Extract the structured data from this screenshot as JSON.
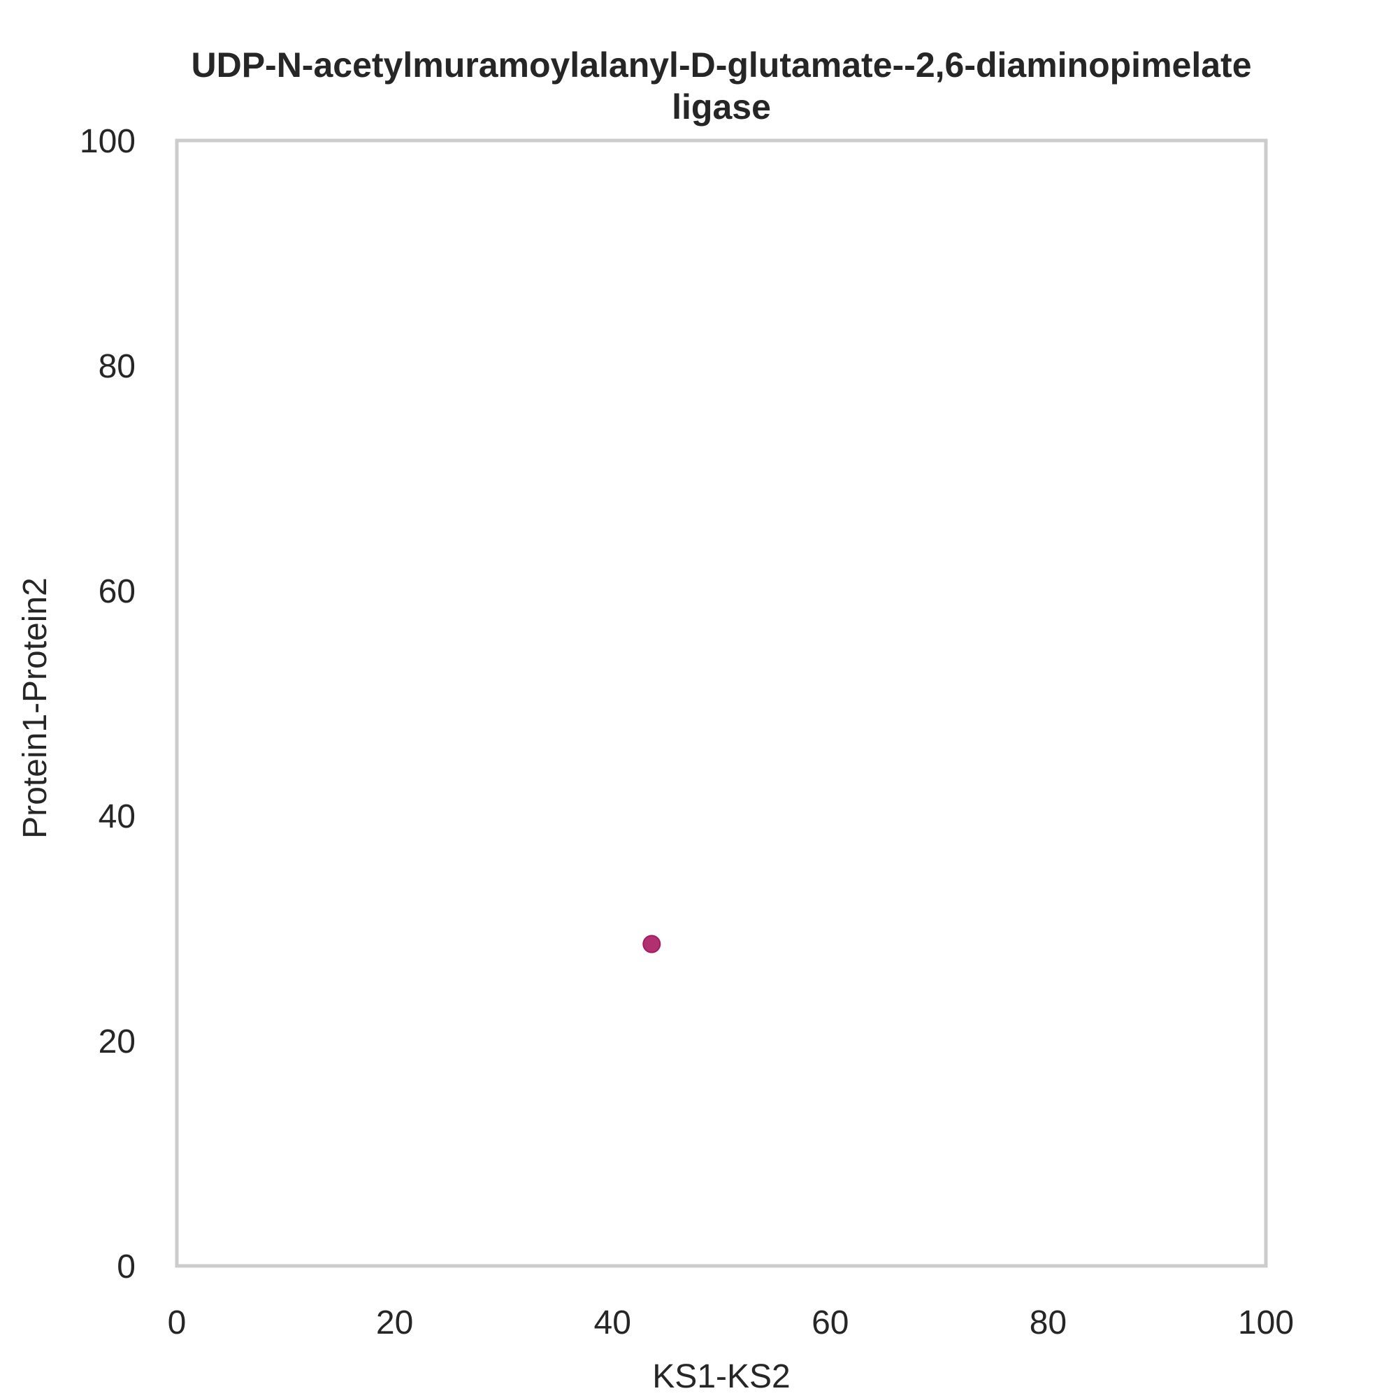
{
  "chart_data": {
    "type": "scatter",
    "title_lines": [
      "UDP-N-acetylmuramoylalanyl-D-glutamate--2,6-diaminopimelate",
      "ligase"
    ],
    "xlabel": "KS1-KS2",
    "ylabel": "Protein1-Protein2",
    "xlim": [
      0,
      100
    ],
    "ylim": [
      0,
      100
    ],
    "xticks": [
      0,
      20,
      40,
      60,
      80,
      100
    ],
    "yticks": [
      0,
      20,
      40,
      60,
      80,
      100
    ],
    "grid": false,
    "legend": "none",
    "frame_color": "#cccccc",
    "points": [
      {
        "x": 43.6,
        "y": 28.6,
        "color": "#a8195f"
      }
    ]
  }
}
